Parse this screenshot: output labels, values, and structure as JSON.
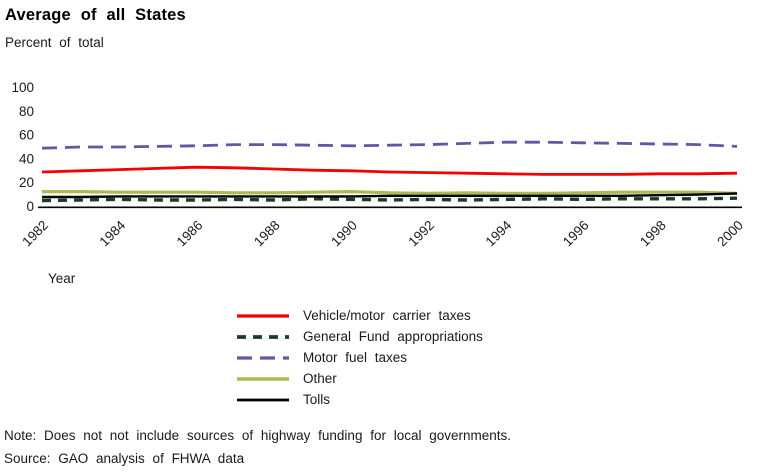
{
  "page": {
    "title": "Average of all States",
    "subtitle": "Percent of total",
    "note": "Note: Does not not include sources of highway funding for local governments.",
    "source": "Source: GAO analysis of FHWA data"
  },
  "chart_data": {
    "type": "line",
    "title": "Average of all States",
    "subtitle": "Percent of total",
    "xlabel": "Year",
    "ylabel": "Percent of total",
    "x": [
      1982,
      1983,
      1984,
      1985,
      1986,
      1987,
      1988,
      1989,
      1990,
      1991,
      1992,
      1993,
      1994,
      1995,
      1996,
      1997,
      1998,
      1999,
      2000
    ],
    "x_ticks": [
      1982,
      1984,
      1986,
      1988,
      1990,
      1992,
      1994,
      1996,
      1998,
      2000
    ],
    "y_ticks": [
      0,
      20,
      40,
      60,
      80,
      100
    ],
    "ylim": [
      0,
      100
    ],
    "grid": false,
    "legend_position": "below-center",
    "series": [
      {
        "name": "Vehicle/motor carrier taxes",
        "color": "#f40000",
        "style": "solid",
        "values": [
          29,
          30,
          31,
          32,
          33,
          32.5,
          31.5,
          30.5,
          30,
          29,
          28.5,
          28,
          27.5,
          27,
          27,
          27,
          27.5,
          27.5,
          28
        ]
      },
      {
        "name": "General Fund appropriations",
        "color": "#1e3b27",
        "style": "dashed",
        "values": [
          5,
          5.5,
          6,
          5.5,
          5.5,
          6,
          5.5,
          6.5,
          6,
          5.5,
          6,
          5.5,
          6,
          6.5,
          6,
          6.5,
          6.5,
          6.5,
          7
        ]
      },
      {
        "name": "Motor fuel taxes",
        "color": "#5d59a5",
        "style": "long-dashed",
        "values": [
          49,
          50,
          50,
          50.5,
          51,
          52,
          52,
          51.5,
          51,
          51.5,
          52,
          53,
          54,
          54,
          53.5,
          53,
          52.5,
          52,
          50.5
        ]
      },
      {
        "name": "Other",
        "color": "#a9bc52",
        "style": "solid",
        "values": [
          12.5,
          12.5,
          12,
          12,
          12,
          11.5,
          11.5,
          12,
          12.5,
          11.5,
          11,
          11.5,
          11,
          11,
          11.5,
          12,
          12,
          12,
          11
        ]
      },
      {
        "name": "Tolls",
        "color": "#000000",
        "style": "solid",
        "values": [
          8,
          8,
          8.5,
          8.5,
          8.5,
          8.5,
          8.5,
          8.5,
          8.5,
          9,
          9,
          9,
          9,
          9,
          9,
          9,
          9.5,
          10,
          11
        ]
      }
    ]
  }
}
